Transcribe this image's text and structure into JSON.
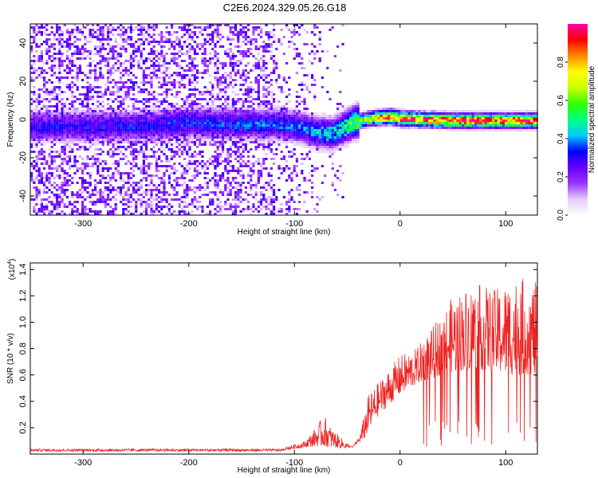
{
  "title": "C2E6.2024.329.05.26.G18",
  "chart_data": [
    {
      "type": "heatmap",
      "xlabel": "Height of straight line (km)",
      "ylabel": "Frequency (Hz)",
      "xlim": [
        -350,
        130
      ],
      "ylim": [
        -50,
        50
      ],
      "xticks": [
        -300,
        -200,
        -100,
        0,
        100
      ],
      "yticks": [
        -40,
        -20,
        0,
        20,
        40
      ],
      "colorbar": {
        "label": "Normalized spectral amplitude",
        "range": [
          0,
          1
        ],
        "ticks": [
          0.0,
          0.2,
          0.4,
          0.6,
          0.8
        ],
        "colormap": [
          "#ffffff",
          "#e6ccff",
          "#9933ff",
          "#6600ff",
          "#0000ff",
          "#00ccff",
          "#00ff80",
          "#33ff00",
          "#ccff00",
          "#ffff00",
          "#ff8800",
          "#ff0000",
          "#ff00aa"
        ]
      },
      "ridge": {
        "description_points": [
          [
            -350,
            -3
          ],
          [
            -250,
            -3
          ],
          [
            -200,
            -1
          ],
          [
            -150,
            -2
          ],
          [
            -120,
            -2
          ],
          [
            -100,
            -3
          ],
          [
            -80,
            -6
          ],
          [
            -65,
            -7
          ],
          [
            -55,
            -4
          ],
          [
            -45,
            -1
          ],
          [
            -30,
            1
          ],
          [
            -10,
            2
          ],
          [
            0,
            1
          ],
          [
            50,
            0
          ],
          [
            130,
            0
          ]
        ],
        "peak_amplitude": [
          [
            -350,
            0.28
          ],
          [
            -200,
            0.32
          ],
          [
            -100,
            0.35
          ],
          [
            -60,
            0.45
          ],
          [
            -40,
            0.6
          ],
          [
            -20,
            0.85
          ],
          [
            0,
            0.9
          ],
          [
            130,
            0.92
          ]
        ]
      }
    },
    {
      "type": "line",
      "xlabel": "Height of straight line (km)",
      "ylabel": "SNR (10 * v/v)",
      "yscale_label": "(x10",
      "yscale_exp": "4",
      "yscale_close": ")",
      "xlim": [
        -350,
        130
      ],
      "ylim": [
        0,
        1.45
      ],
      "xticks": [
        -300,
        -200,
        -100,
        0,
        100
      ],
      "yticks": [
        0.2,
        0.4,
        0.6,
        0.8,
        1.0,
        1.2,
        1.4
      ],
      "series": [
        {
          "color": "#ee2222",
          "envelope": [
            [
              -350,
              0.03
            ],
            [
              -150,
              0.03
            ],
            [
              -110,
              0.05
            ],
            [
              -90,
              0.1
            ],
            [
              -80,
              0.2
            ],
            [
              -72,
              0.3
            ],
            [
              -65,
              0.2
            ],
            [
              -55,
              0.12
            ],
            [
              -45,
              0.05
            ],
            [
              -38,
              0.15
            ],
            [
              -30,
              0.45
            ],
            [
              -20,
              0.55
            ],
            [
              -10,
              0.65
            ],
            [
              0,
              0.75
            ],
            [
              15,
              0.8
            ],
            [
              30,
              0.95
            ],
            [
              50,
              1.2
            ],
            [
              70,
              1.3
            ],
            [
              90,
              1.25
            ],
            [
              110,
              1.35
            ],
            [
              130,
              1.3
            ]
          ],
          "baseline": [
            [
              -350,
              0.02
            ],
            [
              -120,
              0.02
            ],
            [
              -80,
              0.06
            ],
            [
              -50,
              0.04
            ],
            [
              -35,
              0.1
            ],
            [
              -20,
              0.3
            ],
            [
              0,
              0.45
            ],
            [
              20,
              0.55
            ],
            [
              40,
              0.6
            ],
            [
              70,
              0.65
            ],
            [
              100,
              0.6
            ],
            [
              130,
              0.6
            ]
          ]
        }
      ]
    }
  ]
}
